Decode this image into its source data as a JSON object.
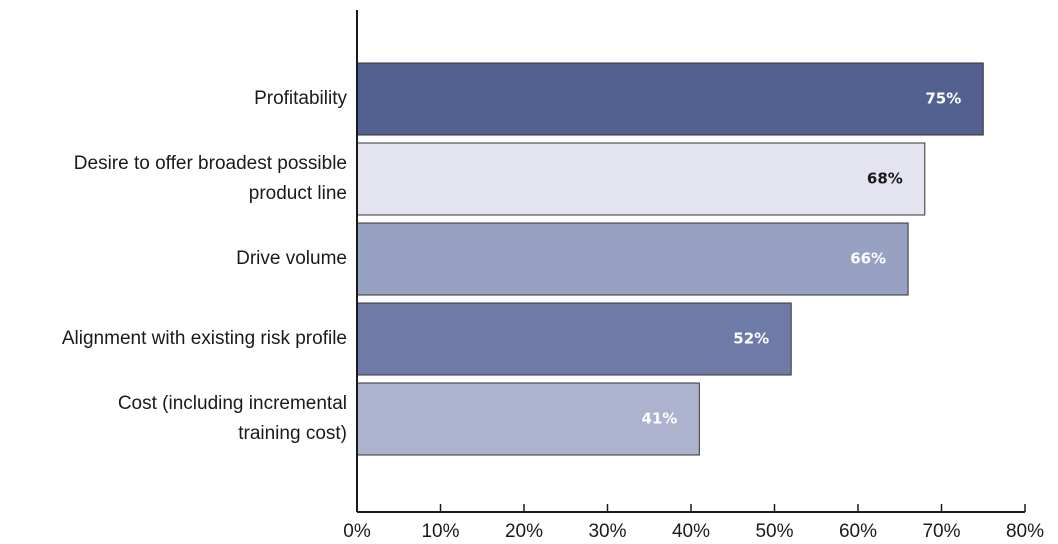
{
  "chart_data": {
    "type": "barh",
    "categories": [
      "Profitability",
      "Desire to offer broadest possible\nproduct line",
      "Drive volume",
      "Alignment with existing risk profile",
      "Cost (including incremental\ntraining cost)"
    ],
    "values": [
      75,
      68,
      66,
      52,
      41
    ],
    "value_labels": [
      "75%",
      "68%",
      "66%",
      "52%",
      "41%"
    ],
    "colors": [
      "#52618f",
      "#e3e4ef",
      "#97a1c2",
      "#6e7ba8",
      "#adb2cf"
    ],
    "label_colors": [
      "#ffffff",
      "#1a1a1a",
      "#ffffff",
      "#ffffff",
      "#ffffff"
    ],
    "xlim": [
      0,
      80
    ],
    "xticks": [
      {
        "value": 0,
        "label": "0%"
      },
      {
        "value": 10,
        "label": "10%"
      },
      {
        "value": 20,
        "label": "20%"
      },
      {
        "value": 30,
        "label": "30%"
      },
      {
        "value": 40,
        "label": "40%"
      },
      {
        "value": 50,
        "label": "50%"
      },
      {
        "value": 60,
        "label": "60%"
      },
      {
        "value": 70,
        "label": "70%"
      },
      {
        "value": 80,
        "label": "80%"
      }
    ]
  }
}
